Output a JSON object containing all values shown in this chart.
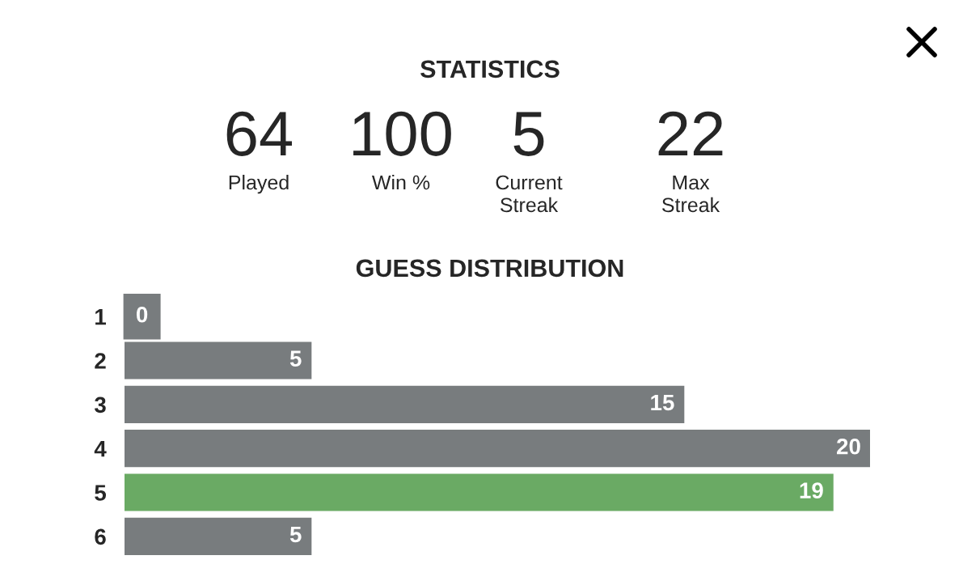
{
  "chart_data": [
    {
      "type": "other",
      "title": "STATISTICS",
      "annotations": [
        "64",
        "Played",
        "100",
        "Win %",
        "5",
        "Current\nStreak",
        "22",
        "Max\nStreak"
      ]
    },
    {
      "type": "bar",
      "orientation": "horizontal",
      "title": "GUESS DISTRIBUTION",
      "categories": [
        "1",
        "2",
        "3",
        "4",
        "5",
        "6"
      ],
      "values": [
        0,
        5,
        15,
        20,
        19,
        5
      ],
      "colors": [
        "#787c7e",
        "#787c7e",
        "#787c7e",
        "#787c7e",
        "#6aaa64",
        "#787c7e"
      ],
      "data_labels": true
    }
  ]
}
